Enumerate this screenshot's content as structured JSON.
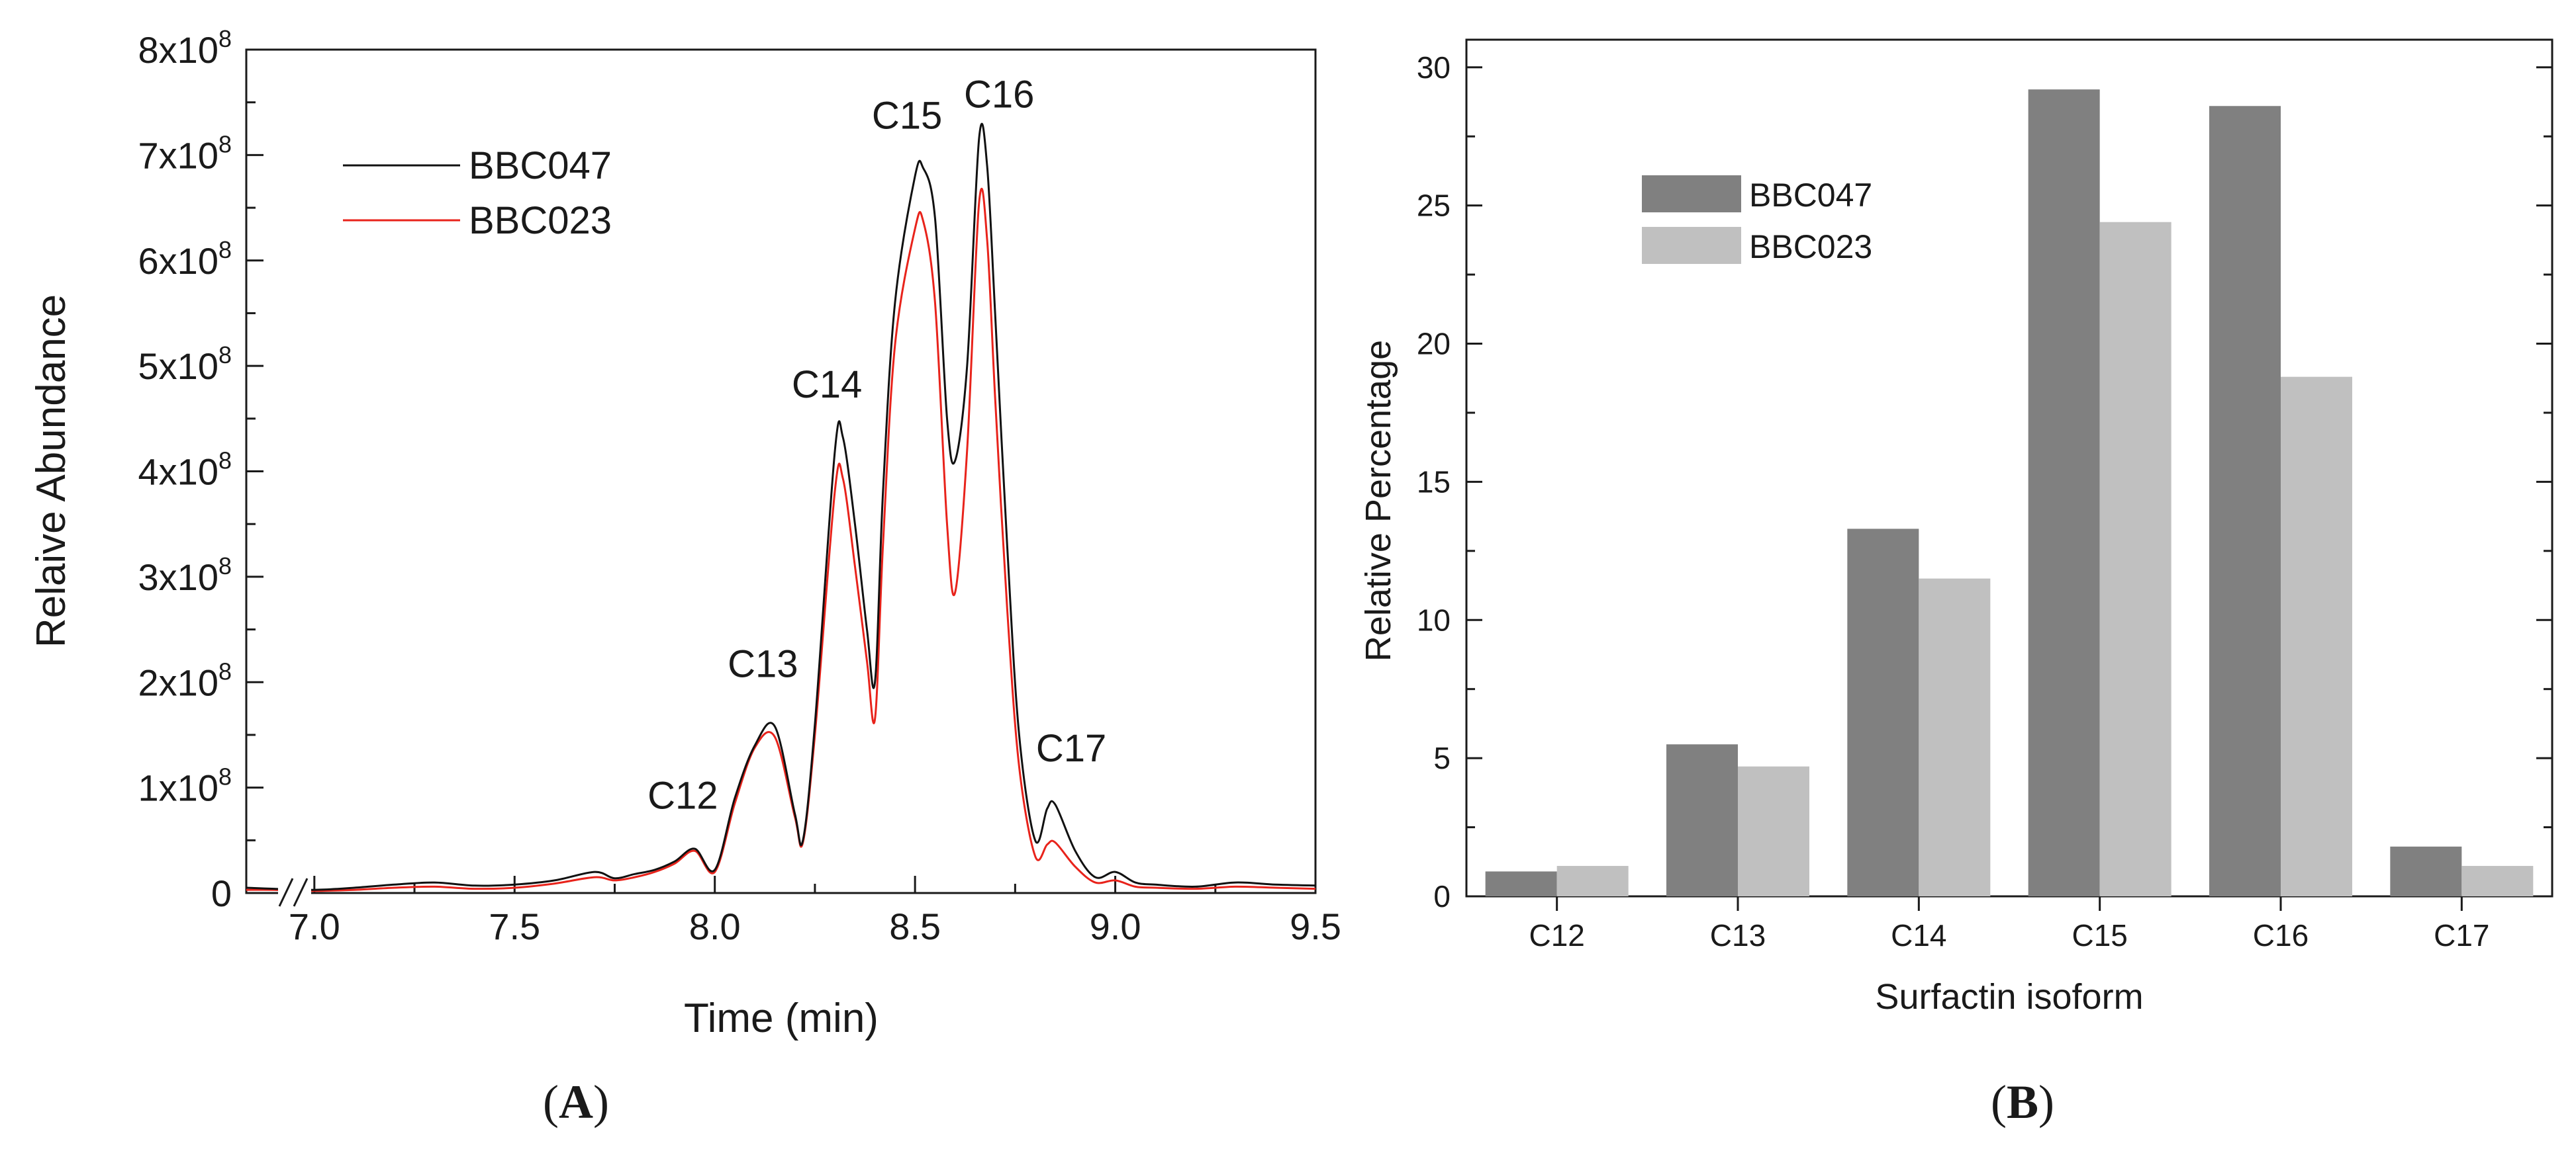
{
  "chart_data": [
    {
      "type": "line",
      "panel_label": "A",
      "xlabel": "Time (min)",
      "ylabel": "Relaive Abundance",
      "xlim": [
        6.83,
        9.5
      ],
      "ylim": [
        0,
        800000000
      ],
      "x_ticks": [
        {
          "value": 7.0,
          "label": "7.0"
        },
        {
          "value": 7.5,
          "label": "7.5"
        },
        {
          "value": 8.0,
          "label": "8.0"
        },
        {
          "value": 8.5,
          "label": "8.5"
        },
        {
          "value": 9.0,
          "label": "9.0"
        },
        {
          "value": 9.5,
          "label": "9.5"
        }
      ],
      "y_ticks": [
        {
          "value": 0,
          "label": "0",
          "exp": ""
        },
        {
          "value": 100000000,
          "label": "1x10",
          "exp": "8"
        },
        {
          "value": 200000000,
          "label": "2x10",
          "exp": "8"
        },
        {
          "value": 300000000,
          "label": "3x10",
          "exp": "8"
        },
        {
          "value": 400000000,
          "label": "4x10",
          "exp": "8"
        },
        {
          "value": 500000000,
          "label": "5x10",
          "exp": "8"
        },
        {
          "value": 600000000,
          "label": "6x10",
          "exp": "8"
        },
        {
          "value": 700000000,
          "label": "7x10",
          "exp": "8"
        },
        {
          "value": 800000000,
          "label": "8x10",
          "exp": "8"
        }
      ],
      "axis_break": true,
      "legend_position": "top-left",
      "series": [
        {
          "name": "BBC047",
          "color": "#111111",
          "x": [
            6.83,
            6.9,
            7.0,
            7.1,
            7.2,
            7.3,
            7.4,
            7.5,
            7.6,
            7.7,
            7.75,
            7.8,
            7.85,
            7.9,
            7.95,
            8.0,
            8.05,
            8.1,
            8.15,
            8.2,
            8.22,
            8.25,
            8.3,
            8.32,
            8.35,
            8.38,
            8.4,
            8.42,
            8.45,
            8.5,
            8.52,
            8.55,
            8.58,
            8.6,
            8.63,
            8.66,
            8.68,
            8.7,
            8.73,
            8.76,
            8.8,
            8.83,
            8.85,
            8.9,
            8.95,
            9.0,
            9.05,
            9.1,
            9.2,
            9.3,
            9.4,
            9.5
          ],
          "y": [
            5000000,
            4000000,
            3000000,
            5000000,
            8000000,
            10000000,
            7000000,
            8000000,
            12000000,
            20000000,
            14000000,
            18000000,
            22000000,
            30000000,
            42000000,
            22000000,
            90000000,
            140000000,
            158000000,
            75000000,
            50000000,
            160000000,
            420000000,
            432000000,
            350000000,
            250000000,
            200000000,
            380000000,
            560000000,
            680000000,
            688000000,
            640000000,
            450000000,
            410000000,
            500000000,
            716000000,
            690000000,
            550000000,
            330000000,
            150000000,
            50000000,
            80000000,
            84000000,
            40000000,
            15000000,
            20000000,
            10000000,
            8000000,
            6000000,
            10000000,
            8000000,
            7000000
          ]
        },
        {
          "name": "BBC023",
          "color": "#e8231b",
          "x": [
            6.83,
            6.9,
            7.0,
            7.1,
            7.2,
            7.3,
            7.4,
            7.5,
            7.6,
            7.7,
            7.75,
            7.8,
            7.85,
            7.9,
            7.95,
            8.0,
            8.05,
            8.1,
            8.15,
            8.2,
            8.22,
            8.25,
            8.3,
            8.32,
            8.35,
            8.38,
            8.4,
            8.42,
            8.45,
            8.5,
            8.52,
            8.55,
            8.58,
            8.6,
            8.63,
            8.66,
            8.68,
            8.7,
            8.73,
            8.76,
            8.8,
            8.83,
            8.85,
            8.9,
            8.95,
            9.0,
            9.05,
            9.1,
            9.2,
            9.3,
            9.4,
            9.5
          ],
          "y": [
            3000000,
            3000000,
            2000000,
            3000000,
            5000000,
            6000000,
            4000000,
            5000000,
            9000000,
            15000000,
            12000000,
            15000000,
            20000000,
            28000000,
            40000000,
            20000000,
            85000000,
            138000000,
            148000000,
            72000000,
            48000000,
            150000000,
            382000000,
            393000000,
            310000000,
            220000000,
            165000000,
            330000000,
            520000000,
            630000000,
            638000000,
            560000000,
            350000000,
            285000000,
            420000000,
            655000000,
            620000000,
            470000000,
            270000000,
            120000000,
            35000000,
            46000000,
            48000000,
            25000000,
            10000000,
            12000000,
            6000000,
            5000000,
            4000000,
            6000000,
            5000000,
            4000000
          ]
        }
      ],
      "annotations": [
        {
          "text": "C12",
          "x": 7.92,
          "y": 80000000
        },
        {
          "text": "C13",
          "x": 8.12,
          "y": 205000000
        },
        {
          "text": "C14",
          "x": 8.28,
          "y": 470000000
        },
        {
          "text": "C15",
          "x": 8.48,
          "y": 725000000
        },
        {
          "text": "C16",
          "x": 8.71,
          "y": 745000000
        },
        {
          "text": "C17",
          "x": 8.89,
          "y": 125000000
        }
      ]
    },
    {
      "type": "bar",
      "panel_label": "B",
      "xlabel": "Surfactin isoform",
      "ylabel": "Relative Percentage",
      "ylim": [
        0,
        31
      ],
      "y_ticks": [
        0,
        5,
        10,
        15,
        20,
        25,
        30
      ],
      "categories": [
        "C12",
        "C13",
        "C14",
        "C15",
        "C16",
        "C17"
      ],
      "legend_position": "top-left",
      "series": [
        {
          "name": "BBC047",
          "color": "#808080",
          "values": [
            0.9,
            5.5,
            13.3,
            29.2,
            28.6,
            1.8
          ]
        },
        {
          "name": "BBC023",
          "color": "#c0c0c0",
          "values": [
            1.1,
            4.7,
            11.5,
            24.4,
            18.8,
            1.1
          ]
        }
      ]
    }
  ]
}
